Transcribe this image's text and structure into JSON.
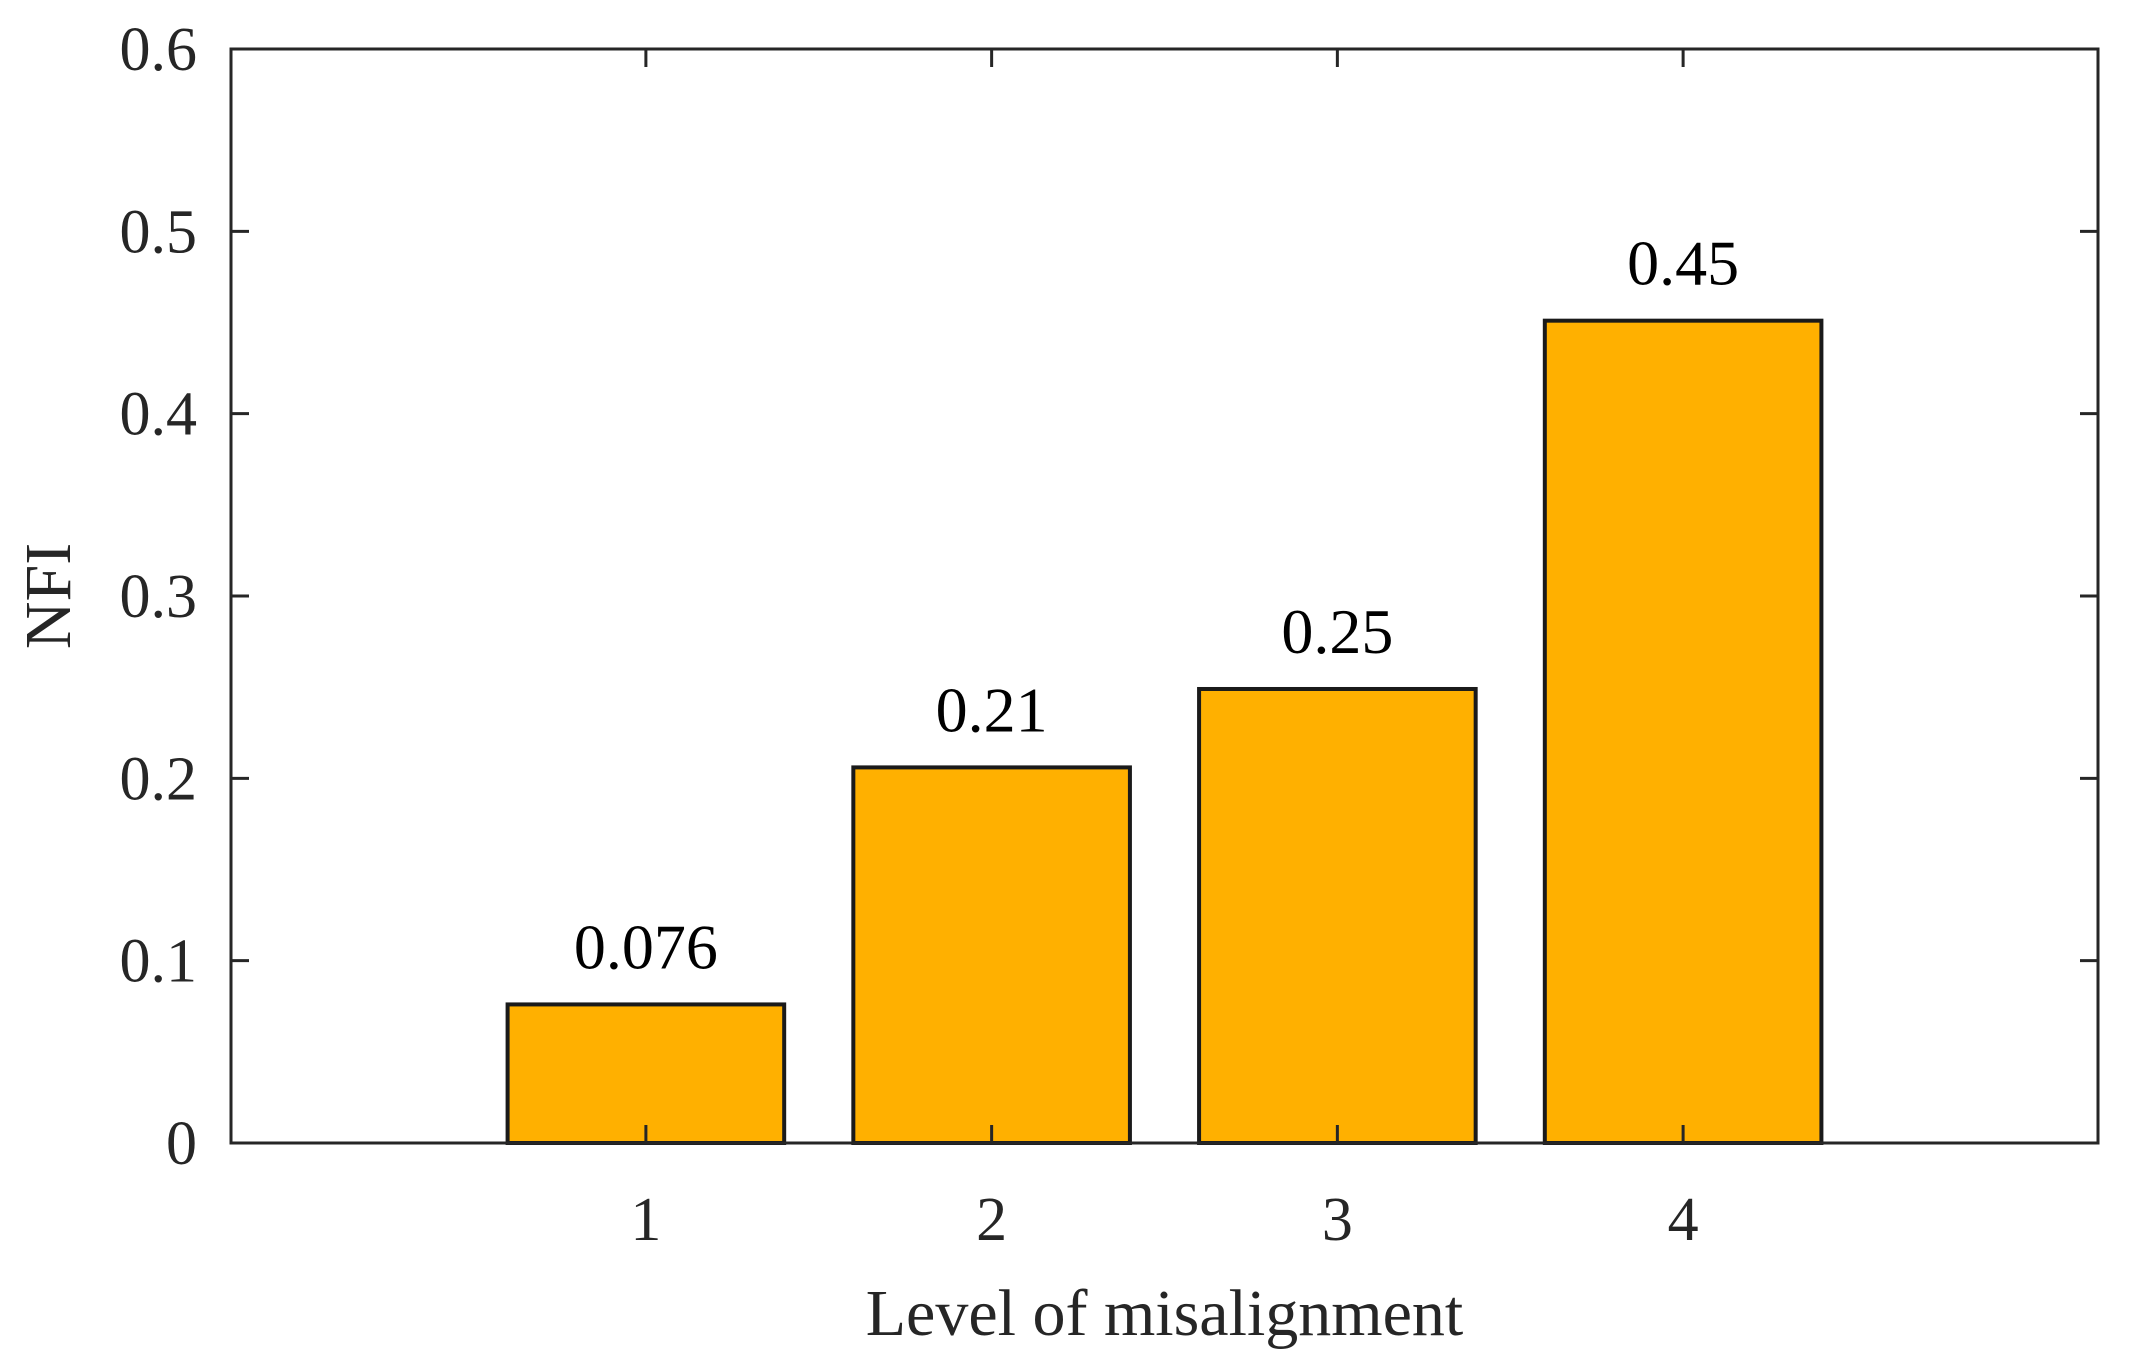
{
  "chart_data": {
    "type": "bar",
    "categories": [
      "1",
      "2",
      "3",
      "4"
    ],
    "values": [
      0.076,
      0.206,
      0.249,
      0.451
    ],
    "data_labels": [
      "0.076",
      "0.21",
      "0.25",
      "0.45"
    ],
    "xlabel": "Level of misalignment",
    "ylabel": "NFI",
    "xlim": [
      -0.2,
      5.2
    ],
    "ylim": [
      0,
      0.6
    ],
    "yticks": [
      0,
      0.1,
      0.2,
      0.3,
      0.4,
      0.5,
      0.6
    ],
    "ytick_labels": [
      "0",
      "0.1",
      "0.2",
      "0.3",
      "0.4",
      "0.5",
      "0.6"
    ],
    "bar_color": "#FFB000",
    "grid": false,
    "legend": "none"
  }
}
